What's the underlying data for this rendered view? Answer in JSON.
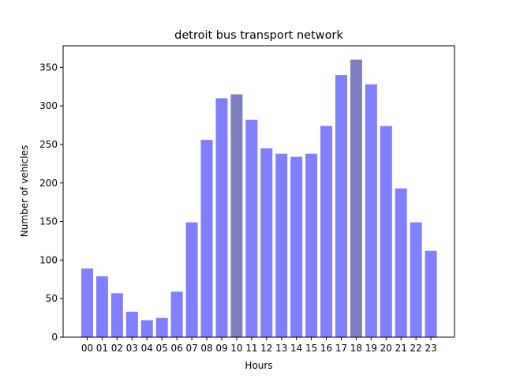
{
  "chart_data": {
    "type": "bar",
    "title": "detroit bus transport network",
    "xlabel": "Hours",
    "ylabel": "Number of vehicles",
    "categories": [
      "00",
      "01",
      "02",
      "03",
      "04",
      "05",
      "06",
      "07",
      "08",
      "09",
      "10",
      "11",
      "12",
      "13",
      "14",
      "15",
      "16",
      "17",
      "18",
      "19",
      "20",
      "21",
      "22",
      "23"
    ],
    "values": [
      89,
      79,
      57,
      33,
      22,
      25,
      59,
      149,
      256,
      310,
      315,
      282,
      245,
      238,
      234,
      238,
      274,
      340,
      360,
      328,
      274,
      193,
      149,
      112
    ],
    "highlighted": [
      "10",
      "18"
    ],
    "ylim": [
      0,
      378
    ],
    "yticks": [
      0,
      50,
      100,
      150,
      200,
      250,
      300,
      350
    ],
    "grid": false,
    "colors": {
      "bar": "#8080ff",
      "highlight": "#8080c0",
      "axis": "#000000"
    }
  }
}
